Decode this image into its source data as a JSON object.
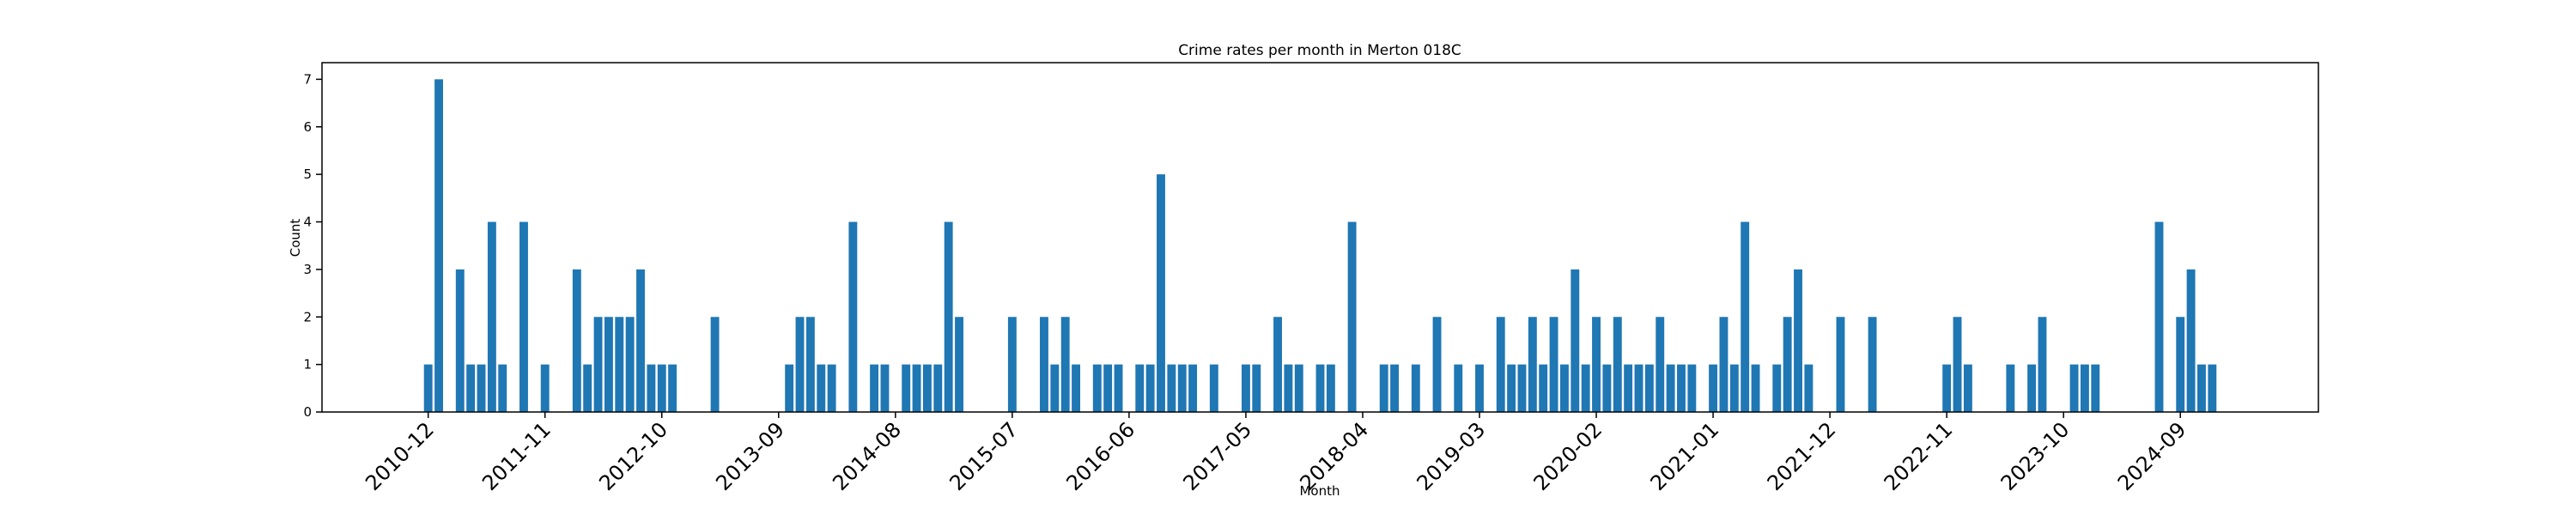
{
  "chart_data": {
    "type": "bar",
    "title": "Crime rates per month in Merton 018C",
    "xlabel": "Month",
    "ylabel": "Count",
    "color": "#1f77b4",
    "x": [
      "2010-12",
      "2011-01",
      "2011-03",
      "2011-04",
      "2011-05",
      "2011-06",
      "2011-07",
      "2011-09",
      "2011-11",
      "2012-02",
      "2012-03",
      "2012-04",
      "2012-05",
      "2012-06",
      "2012-07",
      "2012-08",
      "2012-09",
      "2012-10",
      "2012-11",
      "2013-03",
      "2013-10",
      "2013-11",
      "2013-12",
      "2014-01",
      "2014-02",
      "2014-04",
      "2014-06",
      "2014-07",
      "2014-09",
      "2014-10",
      "2014-11",
      "2014-12",
      "2015-01",
      "2015-02",
      "2015-07",
      "2015-10",
      "2015-11",
      "2015-12",
      "2016-01",
      "2016-03",
      "2016-04",
      "2016-05",
      "2016-07",
      "2016-08",
      "2016-09",
      "2016-10",
      "2016-11",
      "2016-12",
      "2017-02",
      "2017-05",
      "2017-06",
      "2017-08",
      "2017-09",
      "2017-10",
      "2017-12",
      "2018-01",
      "2018-03",
      "2018-06",
      "2018-07",
      "2018-09",
      "2018-11",
      "2019-01",
      "2019-03",
      "2019-05",
      "2019-06",
      "2019-07",
      "2019-08",
      "2019-09",
      "2019-10",
      "2019-11",
      "2019-12",
      "2020-01",
      "2020-02",
      "2020-03",
      "2020-04",
      "2020-05",
      "2020-06",
      "2020-07",
      "2020-08",
      "2020-09",
      "2020-10",
      "2020-11",
      "2021-01",
      "2021-02",
      "2021-03",
      "2021-04",
      "2021-05",
      "2021-07",
      "2021-08",
      "2021-09",
      "2021-10",
      "2022-01",
      "2022-04",
      "2022-11",
      "2022-12",
      "2023-01",
      "2023-05",
      "2023-07",
      "2023-08",
      "2023-11",
      "2023-12",
      "2024-01",
      "2024-07",
      "2024-09",
      "2024-10",
      "2024-11",
      "2024-12"
    ],
    "values": [
      1,
      7,
      3,
      1,
      1,
      4,
      1,
      4,
      1,
      3,
      1,
      2,
      2,
      2,
      2,
      3,
      1,
      1,
      1,
      2,
      1,
      2,
      2,
      1,
      1,
      4,
      1,
      1,
      1,
      1,
      1,
      1,
      4,
      2,
      2,
      2,
      1,
      2,
      1,
      1,
      1,
      1,
      1,
      1,
      5,
      1,
      1,
      1,
      1,
      1,
      1,
      2,
      1,
      1,
      1,
      1,
      4,
      1,
      1,
      1,
      2,
      1,
      1,
      2,
      1,
      1,
      2,
      1,
      2,
      1,
      3,
      1,
      2,
      1,
      2,
      1,
      1,
      1,
      2,
      1,
      1,
      1,
      1,
      2,
      1,
      4,
      1,
      1,
      2,
      3,
      1,
      2,
      2,
      1,
      2,
      1,
      1,
      1,
      2,
      1,
      1,
      1,
      4,
      2,
      3,
      1,
      1
    ],
    "xlim": [
      "2010-02",
      "2025-10"
    ],
    "xticks": [
      "2010-12",
      "2011-11",
      "2012-10",
      "2013-09",
      "2014-08",
      "2015-07",
      "2016-06",
      "2017-05",
      "2018-04",
      "2019-03",
      "2020-02",
      "2021-01",
      "2021-12",
      "2022-11",
      "2023-10",
      "2024-09"
    ],
    "ylim": [
      0,
      7.35
    ],
    "yticks": [
      0,
      1,
      2,
      3,
      4,
      5,
      6,
      7
    ],
    "grid": false
  }
}
